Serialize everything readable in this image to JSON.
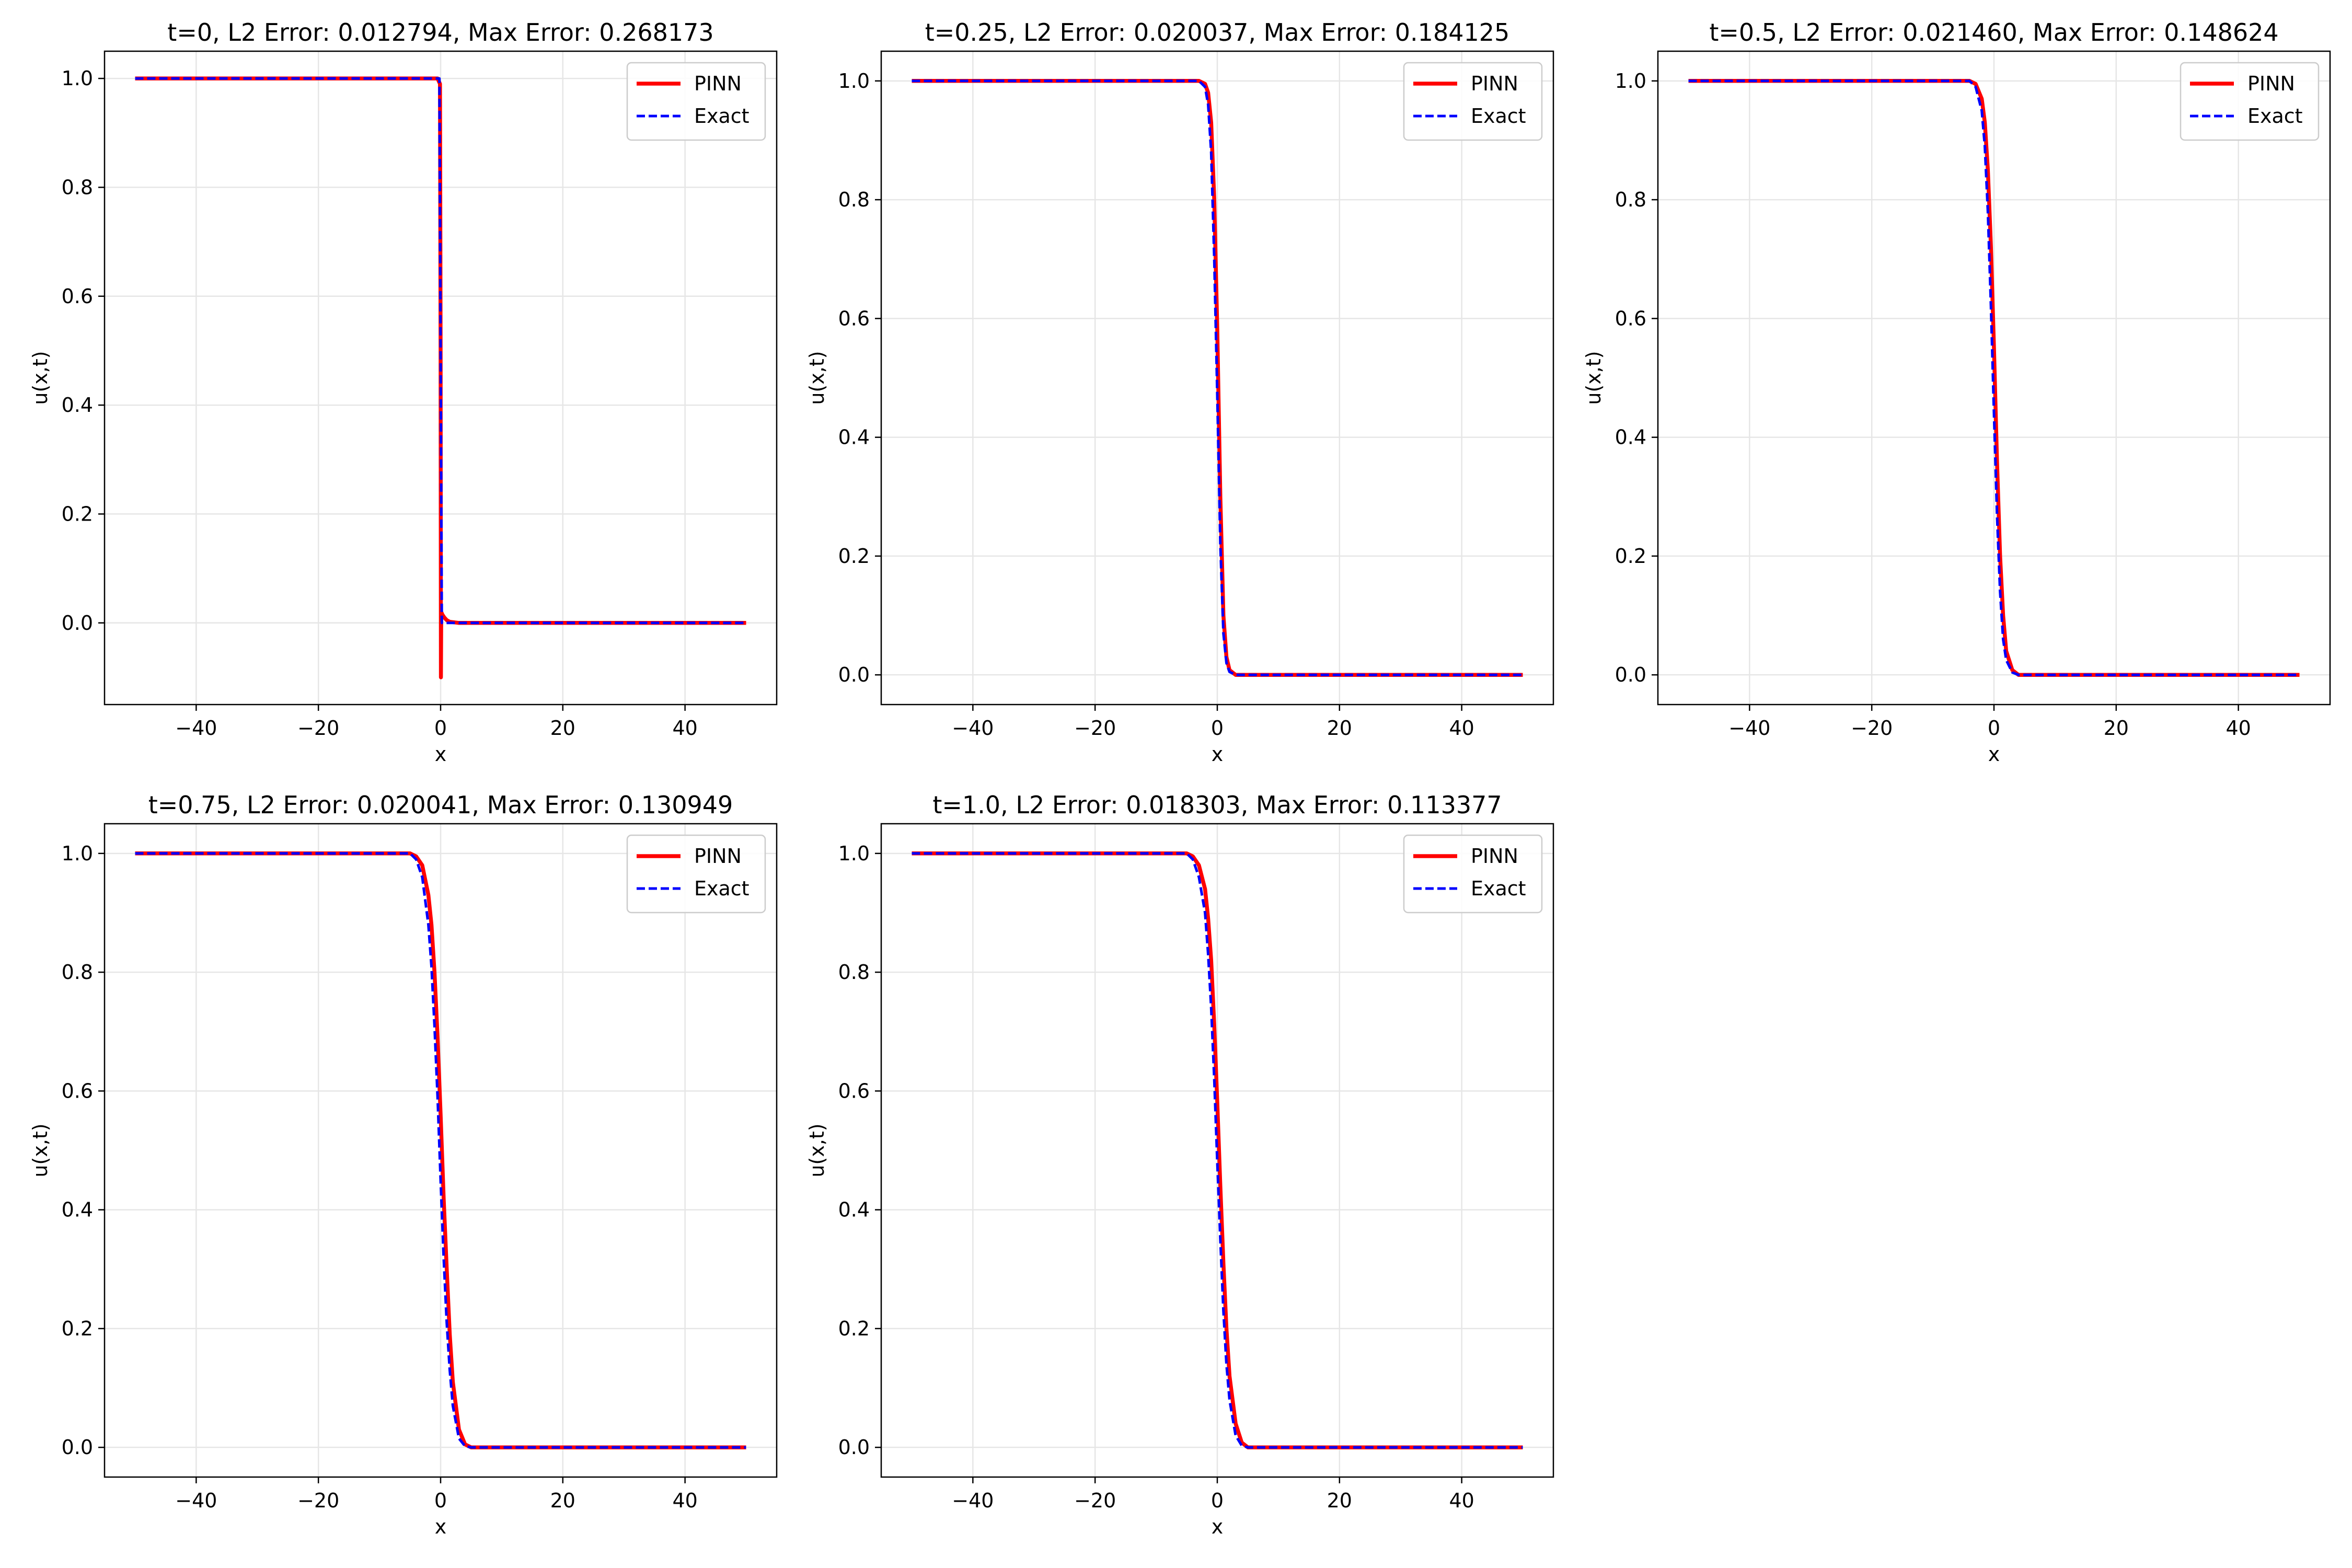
{
  "colors": {
    "pinn": "#ff0000",
    "exact": "#0000ff",
    "grid": "#e6e6e6",
    "axes": "#000000",
    "background": "#ffffff"
  },
  "chart_data": [
    {
      "type": "line",
      "title": "t=0, L2 Error: 0.012794, Max Error: 0.268173",
      "xlabel": "x",
      "ylabel": "u(x,t)",
      "xlim": [
        -55,
        55
      ],
      "ylim": [
        -0.15,
        1.05
      ],
      "xticks": [
        -40,
        -20,
        0,
        20,
        40
      ],
      "xtick_labels": [
        "−40",
        "−20",
        "0",
        "20",
        "40"
      ],
      "yticks": [
        0.0,
        0.2,
        0.4,
        0.6,
        0.8,
        1.0
      ],
      "ytick_labels": [
        "0.0",
        "0.2",
        "0.4",
        "0.6",
        "0.8",
        "1.0"
      ],
      "grid": true,
      "legend_position": "upper-right",
      "series": [
        {
          "name": "PINN",
          "style": "solid",
          "color": "#ff0000",
          "x": [
            -50,
            -2,
            -0.5,
            -0.1,
            0,
            0.05,
            0.1,
            0.3,
            0.6,
            1,
            1.5,
            3,
            50
          ],
          "y": [
            1.0,
            1.0,
            1.0,
            0.99,
            0.5,
            -0.1,
            0.02,
            0.015,
            0.01,
            0.005,
            0.002,
            0.0,
            0.0
          ]
        },
        {
          "name": "Exact",
          "style": "dashed",
          "color": "#0000ff",
          "x": [
            -50,
            -0.2,
            0,
            0.2,
            50
          ],
          "y": [
            1.0,
            1.0,
            0.5,
            0.0,
            0.0
          ]
        }
      ]
    },
    {
      "type": "line",
      "title": "t=0.25, L2 Error: 0.020037, Max Error: 0.184125",
      "xlabel": "x",
      "ylabel": "u(x,t)",
      "xlim": [
        -55,
        55
      ],
      "ylim": [
        -0.05,
        1.05
      ],
      "xticks": [
        -40,
        -20,
        0,
        20,
        40
      ],
      "xtick_labels": [
        "−40",
        "−20",
        "0",
        "20",
        "40"
      ],
      "yticks": [
        0.0,
        0.2,
        0.4,
        0.6,
        0.8,
        1.0
      ],
      "ytick_labels": [
        "0.0",
        "0.2",
        "0.4",
        "0.6",
        "0.8",
        "1.0"
      ],
      "grid": true,
      "legend_position": "upper-right",
      "series": [
        {
          "name": "PINN",
          "style": "solid",
          "color": "#ff0000",
          "x": [
            -50,
            -3,
            -2,
            -1.5,
            -1,
            -0.5,
            0,
            0.5,
            1,
            1.5,
            2,
            3,
            50
          ],
          "y": [
            1.0,
            1.0,
            0.995,
            0.98,
            0.93,
            0.8,
            0.58,
            0.3,
            0.1,
            0.03,
            0.008,
            0.0,
            0.0
          ]
        },
        {
          "name": "Exact",
          "style": "dashed",
          "color": "#0000ff",
          "x": [
            -50,
            -3,
            -2,
            -1.5,
            -1,
            -0.5,
            0,
            0.5,
            1,
            1.5,
            2,
            3,
            50
          ],
          "y": [
            1.0,
            1.0,
            0.99,
            0.96,
            0.88,
            0.7,
            0.47,
            0.22,
            0.07,
            0.02,
            0.005,
            0.0,
            0.0
          ]
        }
      ]
    },
    {
      "type": "line",
      "title": "t=0.5, L2 Error: 0.021460, Max Error: 0.148624",
      "xlabel": "x",
      "ylabel": "u(x,t)",
      "xlim": [
        -55,
        55
      ],
      "ylim": [
        -0.05,
        1.05
      ],
      "xticks": [
        -40,
        -20,
        0,
        20,
        40
      ],
      "xtick_labels": [
        "−40",
        "−20",
        "0",
        "20",
        "40"
      ],
      "yticks": [
        0.0,
        0.2,
        0.4,
        0.6,
        0.8,
        1.0
      ],
      "ytick_labels": [
        "0.0",
        "0.2",
        "0.4",
        "0.6",
        "0.8",
        "1.0"
      ],
      "grid": true,
      "legend_position": "upper-right",
      "series": [
        {
          "name": "PINN",
          "style": "solid",
          "color": "#ff0000",
          "x": [
            -50,
            -4,
            -3,
            -2,
            -1.5,
            -1,
            -0.5,
            0,
            0.5,
            1,
            1.5,
            2,
            3,
            4,
            50
          ],
          "y": [
            1.0,
            1.0,
            0.995,
            0.97,
            0.93,
            0.85,
            0.72,
            0.55,
            0.36,
            0.2,
            0.1,
            0.04,
            0.008,
            0.0,
            0.0
          ]
        },
        {
          "name": "Exact",
          "style": "dashed",
          "color": "#0000ff",
          "x": [
            -50,
            -4,
            -3,
            -2,
            -1.5,
            -1,
            -0.5,
            0,
            0.5,
            1,
            1.5,
            2,
            3,
            4,
            50
          ],
          "y": [
            1.0,
            1.0,
            0.99,
            0.95,
            0.89,
            0.78,
            0.62,
            0.44,
            0.27,
            0.14,
            0.06,
            0.025,
            0.004,
            0.0,
            0.0
          ]
        }
      ]
    },
    {
      "type": "line",
      "title": "t=0.75, L2 Error: 0.020041, Max Error: 0.130949",
      "xlabel": "x",
      "ylabel": "u(x,t)",
      "xlim": [
        -55,
        55
      ],
      "ylim": [
        -0.05,
        1.05
      ],
      "xticks": [
        -40,
        -20,
        0,
        20,
        40
      ],
      "xtick_labels": [
        "−40",
        "−20",
        "0",
        "20",
        "40"
      ],
      "yticks": [
        0.0,
        0.2,
        0.4,
        0.6,
        0.8,
        1.0
      ],
      "ytick_labels": [
        "0.0",
        "0.2",
        "0.4",
        "0.6",
        "0.8",
        "1.0"
      ],
      "grid": true,
      "legend_position": "upper-right",
      "series": [
        {
          "name": "PINN",
          "style": "solid",
          "color": "#ff0000",
          "x": [
            -50,
            -5,
            -4,
            -3,
            -2,
            -1.5,
            -1,
            -0.5,
            0,
            0.5,
            1,
            1.5,
            2,
            3,
            4,
            5,
            50
          ],
          "y": [
            1.0,
            1.0,
            0.995,
            0.98,
            0.93,
            0.88,
            0.8,
            0.69,
            0.56,
            0.42,
            0.3,
            0.19,
            0.11,
            0.03,
            0.005,
            0.0,
            0.0
          ]
        },
        {
          "name": "Exact",
          "style": "dashed",
          "color": "#0000ff",
          "x": [
            -50,
            -5,
            -4,
            -3,
            -2,
            -1.5,
            -1,
            -0.5,
            0,
            0.5,
            1,
            1.5,
            2,
            3,
            4,
            5,
            50
          ],
          "y": [
            1.0,
            1.0,
            0.99,
            0.96,
            0.88,
            0.81,
            0.71,
            0.59,
            0.45,
            0.32,
            0.21,
            0.13,
            0.07,
            0.015,
            0.002,
            0.0,
            0.0
          ]
        }
      ]
    },
    {
      "type": "line",
      "title": "t=1.0, L2 Error: 0.018303, Max Error: 0.113377",
      "xlabel": "x",
      "ylabel": "u(x,t)",
      "xlim": [
        -55,
        55
      ],
      "ylim": [
        -0.05,
        1.05
      ],
      "xticks": [
        -40,
        -20,
        0,
        20,
        40
      ],
      "xtick_labels": [
        "−40",
        "−20",
        "0",
        "20",
        "40"
      ],
      "yticks": [
        0.0,
        0.2,
        0.4,
        0.6,
        0.8,
        1.0
      ],
      "ytick_labels": [
        "0.0",
        "0.2",
        "0.4",
        "0.6",
        "0.8",
        "1.0"
      ],
      "grid": true,
      "legend_position": "upper-right",
      "series": [
        {
          "name": "PINN",
          "style": "solid",
          "color": "#ff0000",
          "x": [
            -50,
            -5,
            -4,
            -3,
            -2,
            -1.5,
            -1,
            -0.5,
            0,
            0.5,
            1,
            1.5,
            2,
            3,
            4,
            5,
            50
          ],
          "y": [
            1.0,
            1.0,
            0.995,
            0.98,
            0.94,
            0.89,
            0.82,
            0.71,
            0.58,
            0.44,
            0.31,
            0.2,
            0.12,
            0.04,
            0.008,
            0.0,
            0.0
          ]
        },
        {
          "name": "Exact",
          "style": "dashed",
          "color": "#0000ff",
          "x": [
            -50,
            -5,
            -4,
            -3,
            -2,
            -1.5,
            -1,
            -0.5,
            0,
            0.5,
            1,
            1.5,
            2,
            3,
            4,
            5,
            50
          ],
          "y": [
            1.0,
            1.0,
            0.99,
            0.96,
            0.9,
            0.83,
            0.74,
            0.62,
            0.48,
            0.35,
            0.23,
            0.14,
            0.08,
            0.02,
            0.003,
            0.0,
            0.0
          ]
        }
      ]
    }
  ]
}
